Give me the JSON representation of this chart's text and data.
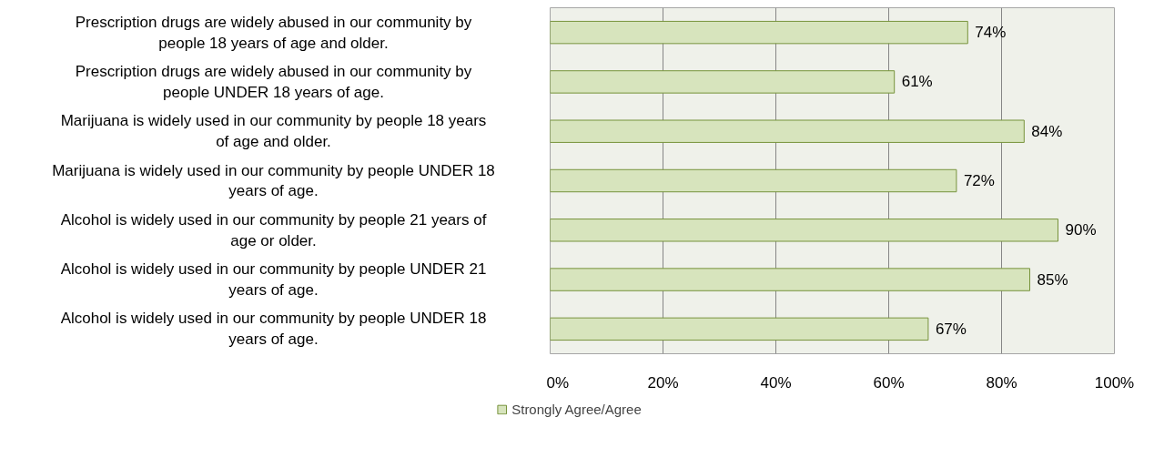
{
  "chart_data": {
    "type": "bar",
    "orientation": "horizontal",
    "categories": [
      "Prescription drugs are widely abused in our community by people 18 years of age and older.",
      "Prescription drugs are widely abused in our community by people UNDER 18 years of age.",
      "Marijuana is widely used in our community by people 18 years of age and older.",
      "Marijuana is widely used in our community by people UNDER 18 years of age.",
      "Alcohol is widely used in our community by people 21 years of age or older.",
      "Alcohol is widely used in our community by people UNDER 21 years of age.",
      "Alcohol is widely used in our community by people UNDER 18 years of age."
    ],
    "series": [
      {
        "name": "Strongly Agree/Agree",
        "color": "#d7e4bd",
        "values": [
          74,
          61,
          84,
          72,
          90,
          85,
          67
        ],
        "value_labels": [
          "74%",
          "61%",
          "84%",
          "72%",
          "90%",
          "85%",
          "67%"
        ]
      }
    ],
    "xlim": [
      0,
      100
    ],
    "xticks": [
      {
        "value": 0,
        "label": "0%"
      },
      {
        "value": 20,
        "label": "20%"
      },
      {
        "value": 40,
        "label": "40%"
      },
      {
        "value": 60,
        "label": "60%"
      },
      {
        "value": 80,
        "label": "80%"
      },
      {
        "value": 100,
        "label": "100%"
      }
    ],
    "grid": "x",
    "legend": "bottom"
  }
}
